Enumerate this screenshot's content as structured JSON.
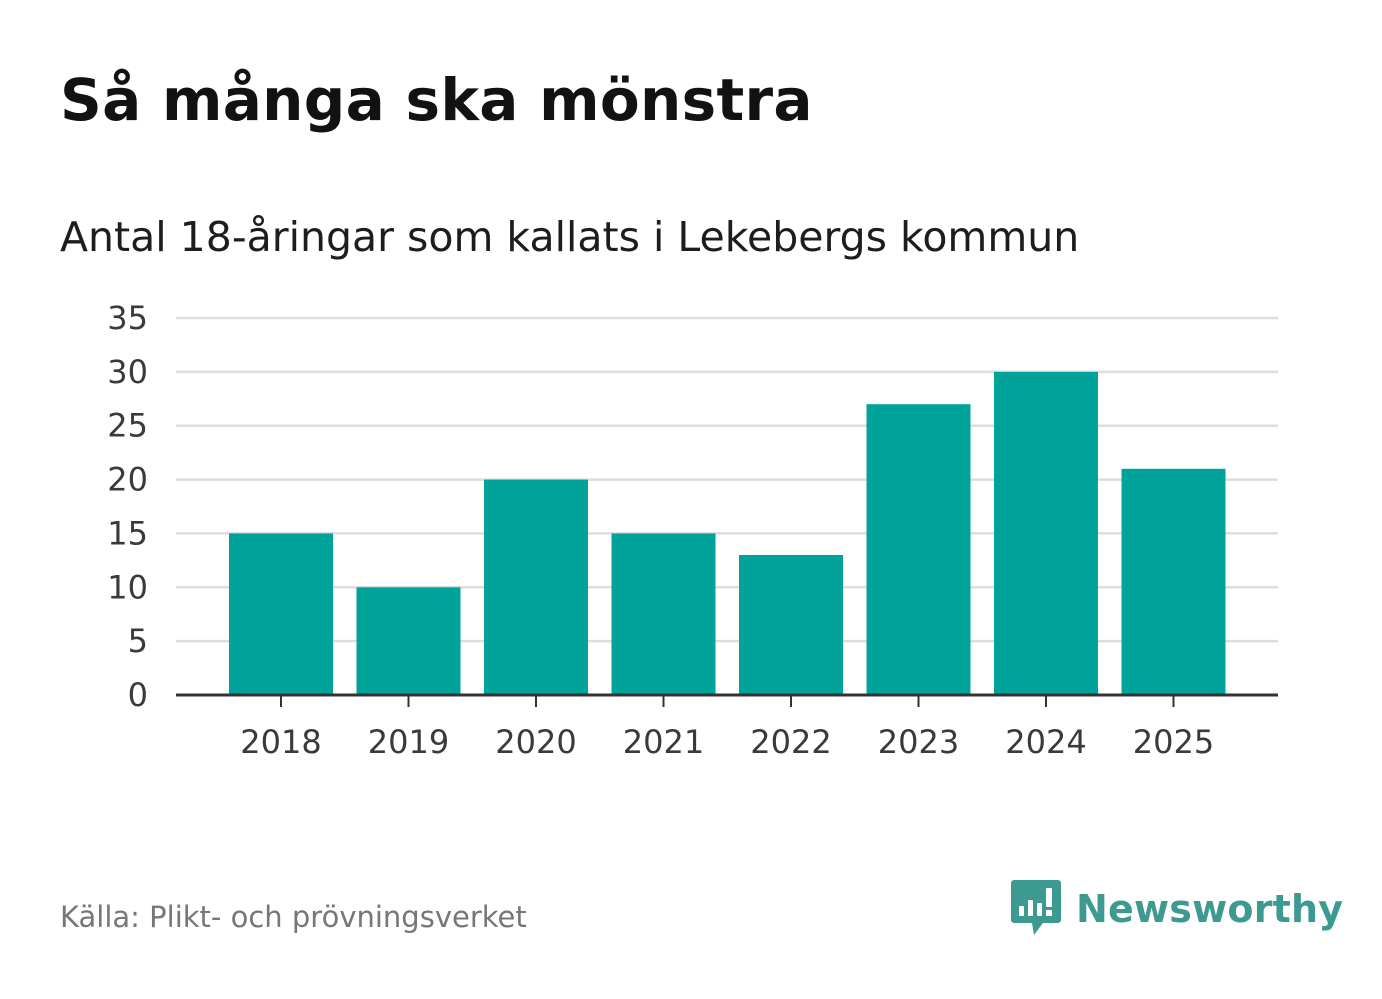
{
  "title": "Så många ska mönstra",
  "subtitle": "Antal 18-åringar som kallats i Lekebergs kommun",
  "source": "Källa: Plikt- och prövningsverket",
  "brand": {
    "name": "Newsworthy",
    "icon": "newsworthy-logo-icon",
    "color": "#3d9a91"
  },
  "colors": {
    "bar": "#00a39a",
    "grid": "#dddddd",
    "axis": "#333333"
  },
  "chart_data": {
    "type": "bar",
    "title": "Så många ska mönstra",
    "subtitle": "Antal 18-åringar som kallats i Lekebergs kommun",
    "xlabel": "",
    "ylabel": "",
    "categories": [
      "2018",
      "2019",
      "2020",
      "2021",
      "2022",
      "2023",
      "2024",
      "2025"
    ],
    "values": [
      15,
      10,
      20,
      15,
      13,
      27,
      30,
      21
    ],
    "ylim": [
      0,
      35
    ],
    "yticks": [
      0,
      5,
      10,
      15,
      20,
      25,
      30,
      35
    ],
    "grid": true,
    "legend": "none"
  }
}
